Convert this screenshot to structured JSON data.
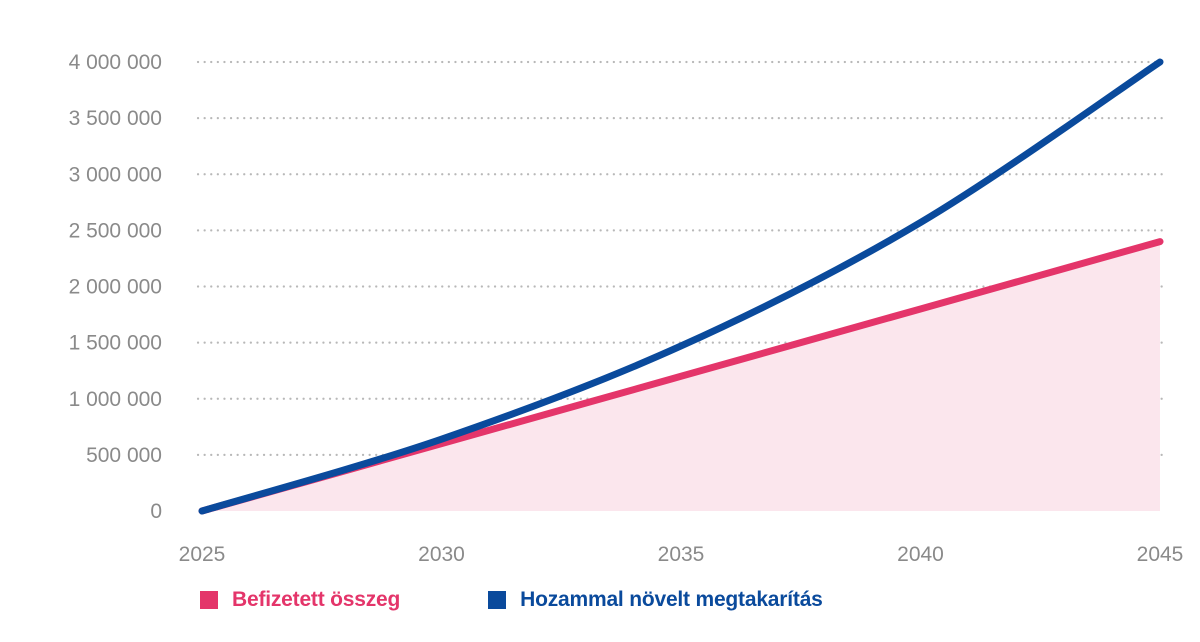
{
  "colors": {
    "paid": "#e4356a",
    "paid_fill": "#fbe6ed",
    "growth": "#0a4a9c",
    "grid": "#b8b8b8",
    "tick": "#8a8a8a"
  },
  "chart_data": {
    "type": "line",
    "title": "",
    "xlabel": "",
    "ylabel": "",
    "x": [
      2025,
      2030,
      2035,
      2040,
      2045
    ],
    "xlim": [
      2025,
      2045
    ],
    "ylim": [
      0,
      4000000
    ],
    "x_ticks": [
      "2025",
      "2030",
      "2035",
      "2040",
      "2045"
    ],
    "y_ticks": [
      "0",
      "500 000",
      "1 000 000",
      "1 500 000",
      "2 000 000",
      "2 500 000",
      "3 000 000",
      "3 500 000",
      "4 000 000"
    ],
    "y_tick_values": [
      0,
      500000,
      1000000,
      1500000,
      2000000,
      2500000,
      3000000,
      3500000,
      4000000
    ],
    "grid": "horizontal dotted",
    "legend_placement": "bottom-left",
    "series": [
      {
        "name": "Befizetett összeg",
        "color_key": "paid",
        "area_fill": true,
        "values": [
          0,
          600000,
          1200000,
          1800000,
          2400000
        ]
      },
      {
        "name": "Hozammal növelt megtakarítás",
        "color_key": "growth",
        "area_fill": false,
        "values": [
          0,
          640000,
          1470000,
          2570000,
          4000000
        ]
      }
    ]
  }
}
